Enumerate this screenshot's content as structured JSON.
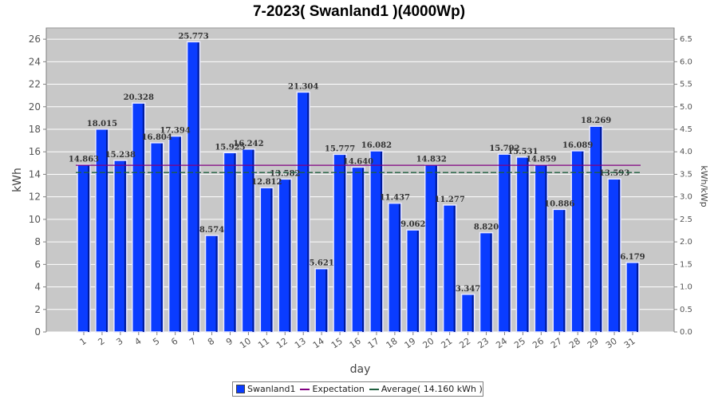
{
  "chart_data": {
    "type": "bar",
    "title": "7-2023( Swanland1 )(4000Wp)",
    "xlabel": "day",
    "ylabel": "kWh",
    "ylabel_right": "kWh/kWp",
    "ylim": [
      0,
      27
    ],
    "yticks": [
      "0",
      "2",
      "4",
      "6",
      "8",
      "10",
      "12",
      "14",
      "16",
      "18",
      "20",
      "22",
      "24",
      "26"
    ],
    "ylim_right": [
      0,
      6.75
    ],
    "yticks_right": [
      "0.0",
      "0.5",
      "1.0",
      "1.5",
      "2.0",
      "2.5",
      "3.0",
      "3.5",
      "4.0",
      "4.5",
      "5.0",
      "5.5",
      "6.0",
      "6.5"
    ],
    "categories": [
      "1",
      "2",
      "3",
      "4",
      "5",
      "6",
      "7",
      "8",
      "9",
      "10",
      "11",
      "12",
      "13",
      "14",
      "15",
      "16",
      "17",
      "18",
      "19",
      "20",
      "21",
      "22",
      "23",
      "24",
      "25",
      "26",
      "27",
      "28",
      "29",
      "30",
      "31"
    ],
    "series": [
      {
        "name": "Swanland1",
        "color": "#0a3cff",
        "values": [
          14.863,
          18.015,
          15.238,
          20.328,
          16.804,
          17.394,
          25.773,
          8.574,
          15.925,
          16.242,
          12.812,
          13.582,
          21.304,
          5.621,
          15.777,
          14.64,
          16.082,
          11.437,
          9.062,
          14.832,
          11.277,
          3.347,
          8.82,
          15.792,
          15.531,
          14.859,
          10.886,
          16.089,
          18.269,
          13.593,
          6.179
        ],
        "labels": [
          "14.863",
          "18.015",
          "15.238",
          "20.328",
          "16.804",
          "17.394",
          "25.773",
          "8.574",
          "15.925",
          "16.242",
          "12.812",
          "13.582",
          "21.304",
          "5.621",
          "15.777",
          "14.640",
          "16.082",
          "11.437",
          "9.062",
          "14.832",
          "11.277",
          "3.347",
          "8.820",
          "15.792",
          "15.531",
          "14.859",
          "10.886",
          "16.089",
          "18.269",
          "13.593",
          "6.179"
        ]
      }
    ],
    "expectation": {
      "label": "Expectation",
      "value": 14.8,
      "color": "#800080"
    },
    "average": {
      "label": "Average( 14.160 kWh )",
      "value": 14.16,
      "color": "#1f5f3f"
    },
    "grid": true,
    "legend_position": "bottom"
  }
}
